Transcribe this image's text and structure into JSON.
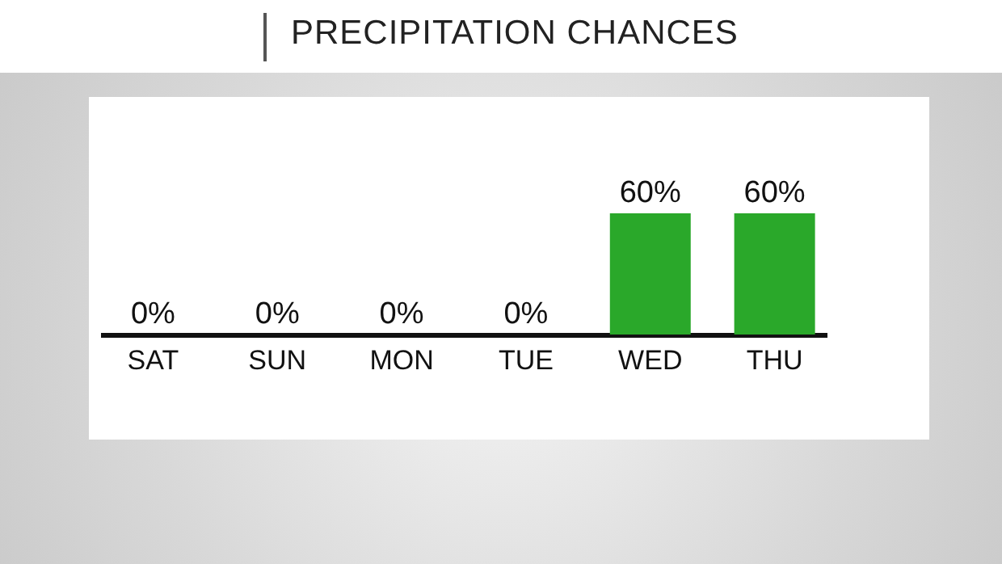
{
  "chart_data": {
    "type": "bar",
    "title": "PRECIPITATION CHANCES",
    "categories": [
      "SAT",
      "SUN",
      "MON",
      "TUE",
      "WED",
      "THU"
    ],
    "values": [
      0,
      0,
      0,
      0,
      60,
      60
    ],
    "value_labels": [
      "0%",
      "0%",
      "0%",
      "0%",
      "60%",
      "60%"
    ],
    "color": "#2aa82a"
  }
}
